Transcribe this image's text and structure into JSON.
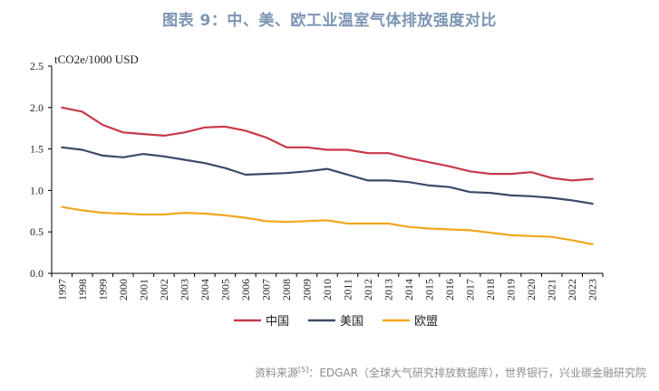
{
  "title": "图表 9：中、美、欧工业温室气体排放强度对比",
  "source": {
    "prefix": "资料来源",
    "ref": "[5]",
    "text": "：EDGAR（全球大气研究排放数据库），世界银行，兴业碳金融研究院"
  },
  "chart_data": {
    "type": "line",
    "unit_label": "tCO2e/1000 USD",
    "xlabel": "",
    "ylabel": "",
    "ylim": [
      0,
      2.5
    ],
    "yticks": [
      "0.0",
      "0.5",
      "1.0",
      "1.5",
      "2.0",
      "2.5"
    ],
    "grid": false,
    "legend_position": "bottom",
    "x": [
      "1997",
      "1998",
      "1999",
      "2000",
      "2001",
      "2002",
      "2003",
      "2004",
      "2005",
      "2006",
      "2007",
      "2008",
      "2009",
      "2010",
      "2011",
      "2012",
      "2013",
      "2014",
      "2015",
      "2016",
      "2017",
      "2018",
      "2019",
      "2020",
      "2021",
      "2022",
      "2023"
    ],
    "series": [
      {
        "name": "中国",
        "color": "#c8384a",
        "values": [
          2.0,
          1.95,
          1.79,
          1.7,
          1.68,
          1.66,
          1.7,
          1.76,
          1.77,
          1.72,
          1.64,
          1.52,
          1.52,
          1.49,
          1.49,
          1.45,
          1.45,
          1.39,
          1.34,
          1.29,
          1.23,
          1.2,
          1.2,
          1.22,
          1.15,
          1.12,
          1.14
        ]
      },
      {
        "name": "美国",
        "color": "#3b4a68",
        "values": [
          1.52,
          1.49,
          1.42,
          1.4,
          1.44,
          1.41,
          1.37,
          1.33,
          1.27,
          1.19,
          1.2,
          1.21,
          1.23,
          1.26,
          1.19,
          1.12,
          1.12,
          1.1,
          1.06,
          1.04,
          0.98,
          0.97,
          0.94,
          0.93,
          0.91,
          0.88,
          0.84
        ]
      },
      {
        "name": "欧盟",
        "color": "#f2a61f",
        "values": [
          0.8,
          0.76,
          0.73,
          0.72,
          0.71,
          0.71,
          0.73,
          0.72,
          0.7,
          0.67,
          0.63,
          0.62,
          0.63,
          0.64,
          0.6,
          0.6,
          0.6,
          0.56,
          0.54,
          0.53,
          0.52,
          0.49,
          0.46,
          0.45,
          0.44,
          0.4,
          0.35
        ]
      }
    ]
  }
}
